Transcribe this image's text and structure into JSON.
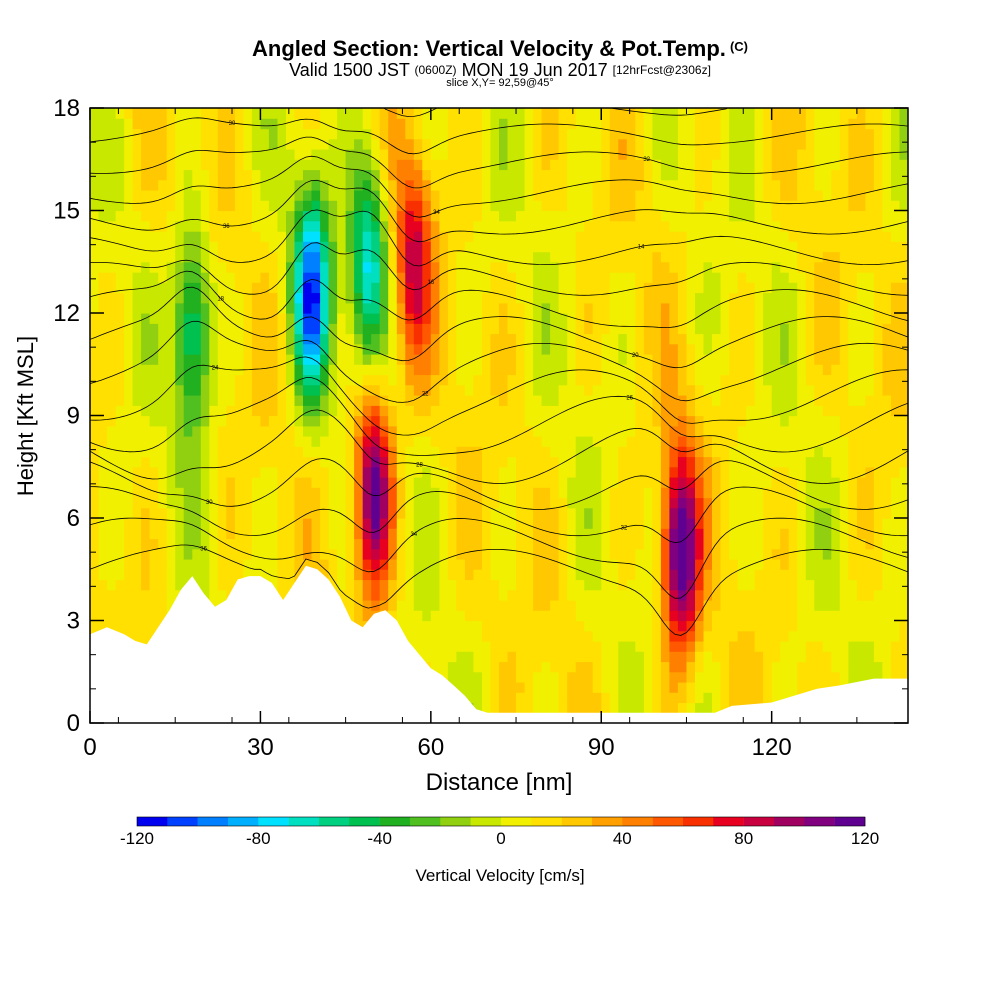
{
  "header": {
    "title": "Angled Section: Vertical Velocity & Pot.Temp.",
    "title_units": "(C)",
    "valid_prefix": "Valid 1500 JST",
    "valid_utc": "(0600Z)",
    "valid_date": "MON 19 Jun 2017",
    "forecast": "[12hrFcst@2306z]",
    "slice_label": "slice X,Y= 92,59@45°"
  },
  "chart_data": {
    "type": "heatmap",
    "title": "Angled Section: Vertical Velocity & Pot.Temp.",
    "xlabel": "Distance [nm]",
    "ylabel": "Height [Kft MSL]",
    "xlim": [
      0,
      144
    ],
    "ylim": [
      0,
      18
    ],
    "x_ticks": [
      "0",
      "30",
      "60",
      "90",
      "120"
    ],
    "y_ticks": [
      "0",
      "3",
      "6",
      "9",
      "12",
      "15",
      "18"
    ],
    "colorbar": {
      "label": "Vertical Velocity [cm/s]",
      "ticks": [
        "-120",
        "-80",
        "-40",
        "0",
        "40",
        "80",
        "120"
      ],
      "range": [
        -120,
        120
      ],
      "colors": [
        "#0000f0",
        "#0040ff",
        "#0080ff",
        "#00b0ff",
        "#00e0ff",
        "#00e0c0",
        "#00d080",
        "#00c050",
        "#20b020",
        "#50c020",
        "#90d010",
        "#c8e800",
        "#f0f000",
        "#ffe000",
        "#ffc800",
        "#ffa000",
        "#ff8000",
        "#ff5800",
        "#f83000",
        "#e80020",
        "#c80040",
        "#a00060",
        "#800080",
        "#600090"
      ]
    },
    "updraft_cores": [
      {
        "x": 50,
        "y": 6.8,
        "w": 110
      },
      {
        "x": 57,
        "y": 13.5,
        "w": 70
      },
      {
        "x": 104,
        "y": 5.0,
        "w": 120
      }
    ],
    "downdraft_cores": [
      {
        "x": 18,
        "y": 11.5,
        "w": -70
      },
      {
        "x": 39,
        "y": 12.5,
        "w": -110
      },
      {
        "x": 49,
        "y": 13.5,
        "w": -80
      }
    ],
    "terrain_profile": {
      "x": [
        0,
        3,
        6,
        8,
        10,
        12,
        14,
        16,
        18,
        20,
        22,
        24,
        26,
        28,
        30,
        32,
        34,
        36,
        38,
        40,
        42,
        44,
        46,
        48,
        50,
        52,
        54,
        56,
        58,
        60,
        62,
        64,
        66,
        68,
        70,
        80,
        90,
        100,
        106,
        110,
        113,
        120,
        128,
        132,
        138,
        144
      ],
      "y": [
        2.6,
        2.8,
        2.6,
        2.4,
        2.3,
        2.8,
        3.3,
        3.9,
        4.3,
        3.8,
        3.4,
        3.6,
        4.2,
        4.3,
        4.3,
        4.1,
        3.6,
        4.1,
        4.6,
        4.5,
        4.2,
        3.7,
        3.0,
        2.8,
        3.2,
        3.3,
        3.0,
        2.4,
        2.0,
        1.6,
        1.4,
        1.1,
        0.8,
        0.4,
        0.3,
        0.3,
        0.3,
        0.3,
        0.3,
        0.3,
        0.5,
        0.6,
        1.0,
        1.1,
        1.3,
        1.3
      ]
    },
    "isentrope_labels": [
      "36",
      "34",
      "32",
      "30",
      "28",
      "26",
      "24",
      "22",
      "20",
      "18",
      "16",
      "14"
    ]
  }
}
